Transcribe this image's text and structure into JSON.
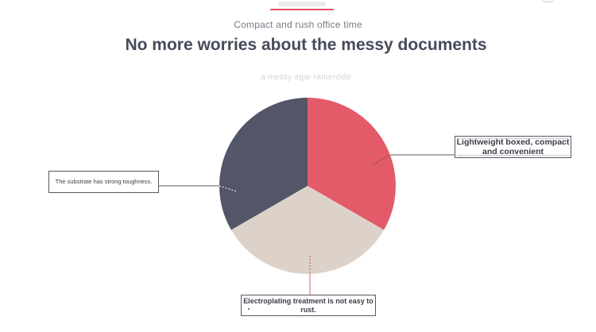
{
  "header": {
    "subtitle": "Compact and rush office time",
    "headline": "No more worries about the messy documents",
    "faded_caption": "a messy agar ramentide"
  },
  "colors": {
    "accent_red": "#e35a68",
    "dark_slate": "#535667",
    "beige": "#ddd2ca",
    "line_dark": "#55585f"
  },
  "pie": {
    "slices": [
      {
        "name": "lightweight",
        "value": 1,
        "color": "#e35a68"
      },
      {
        "name": "electroplating",
        "value": 1,
        "color": "#ddd2ca"
      },
      {
        "name": "substrate",
        "value": 1,
        "color": "#535667"
      }
    ]
  },
  "callouts": {
    "right": "Lightweight boxed, compact and convenient",
    "left": "The substrate has strong toughness.",
    "bottom": "Electroplating treatment is not easy to rust."
  }
}
